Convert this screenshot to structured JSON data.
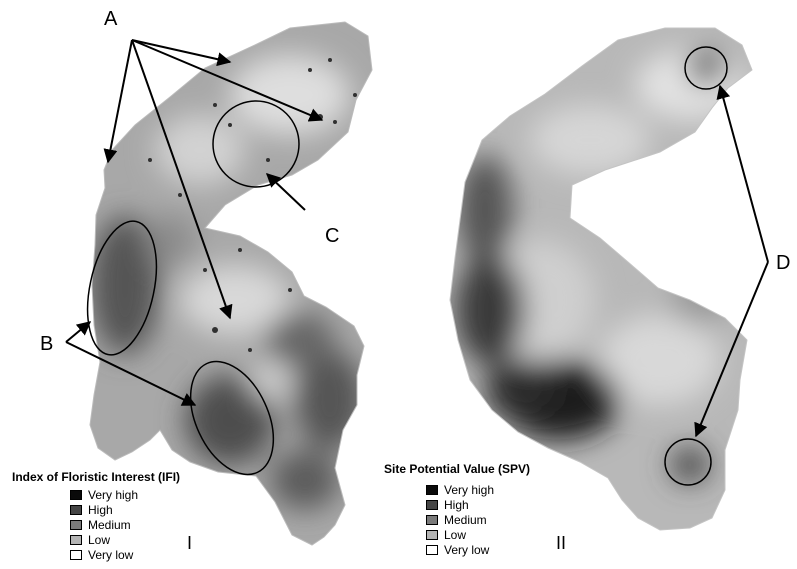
{
  "callouts": {
    "a": "A",
    "b": "B",
    "c": "C",
    "d": "D"
  },
  "panels": [
    {
      "numeral": "I",
      "legend_title": "Index of Floristic Interest (IFI)",
      "classes": [
        {
          "label": "Very high",
          "color": "#0a0a0a"
        },
        {
          "label": "High",
          "color": "#454545"
        },
        {
          "label": "Medium",
          "color": "#7a7a7a"
        },
        {
          "label": "Low",
          "color": "#b4b4b4"
        },
        {
          "label": "Very low",
          "color": "#ffffff"
        }
      ]
    },
    {
      "numeral": "II",
      "legend_title": "Site Potential Value (SPV)",
      "classes": [
        {
          "label": "Very high",
          "color": "#0a0a0a"
        },
        {
          "label": "High",
          "color": "#454545"
        },
        {
          "label": "Medium",
          "color": "#7a7a7a"
        },
        {
          "label": "Low",
          "color": "#b4b4b4"
        },
        {
          "label": "Very low",
          "color": "#ffffff"
        }
      ]
    }
  ]
}
